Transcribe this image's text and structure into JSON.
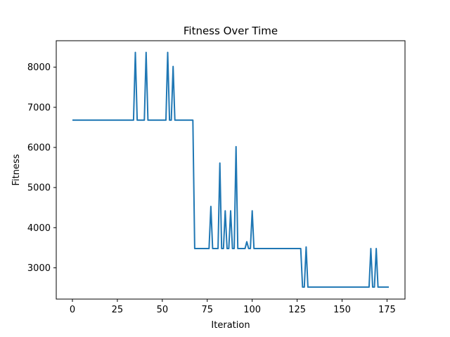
{
  "chart_data": {
    "type": "line",
    "title": "Fitness Over Time",
    "xlabel": "Iteration",
    "ylabel": "Fitness",
    "xlim": [
      -9,
      185
    ],
    "ylim": [
      2220,
      8660
    ],
    "xticks": [
      0,
      25,
      50,
      75,
      100,
      125,
      150,
      175
    ],
    "yticks": [
      3000,
      4000,
      5000,
      6000,
      7000,
      8000
    ],
    "grid": false,
    "line_color": "#1f77b4",
    "series": [
      {
        "points": [
          [
            0,
            6680
          ],
          [
            34,
            6680
          ],
          [
            35,
            8370
          ],
          [
            36,
            6680
          ],
          [
            40,
            6680
          ],
          [
            41,
            8370
          ],
          [
            42,
            6680
          ],
          [
            52,
            6680
          ],
          [
            53,
            8370
          ],
          [
            54,
            6680
          ],
          [
            55,
            6680
          ],
          [
            56,
            8020
          ],
          [
            57,
            6680
          ],
          [
            67,
            6680
          ],
          [
            68,
            3480
          ],
          [
            76,
            3480
          ],
          [
            77,
            4530
          ],
          [
            78,
            3480
          ],
          [
            81,
            3480
          ],
          [
            82,
            5610
          ],
          [
            83,
            3480
          ],
          [
            84,
            3480
          ],
          [
            85,
            4420
          ],
          [
            86,
            3480
          ],
          [
            87,
            3480
          ],
          [
            88,
            4420
          ],
          [
            89,
            3480
          ],
          [
            90,
            3480
          ],
          [
            91,
            6020
          ],
          [
            92,
            3480
          ],
          [
            96,
            3480
          ],
          [
            97,
            3650
          ],
          [
            98,
            3480
          ],
          [
            99,
            3480
          ],
          [
            100,
            4420
          ],
          [
            101,
            3480
          ],
          [
            127,
            3480
          ],
          [
            128,
            2520
          ],
          [
            129,
            2520
          ],
          [
            130,
            3520
          ],
          [
            131,
            2520
          ],
          [
            165,
            2520
          ],
          [
            166,
            3480
          ],
          [
            167,
            2520
          ],
          [
            168,
            2520
          ],
          [
            169,
            3480
          ],
          [
            170,
            2520
          ],
          [
            176,
            2520
          ]
        ]
      }
    ]
  }
}
